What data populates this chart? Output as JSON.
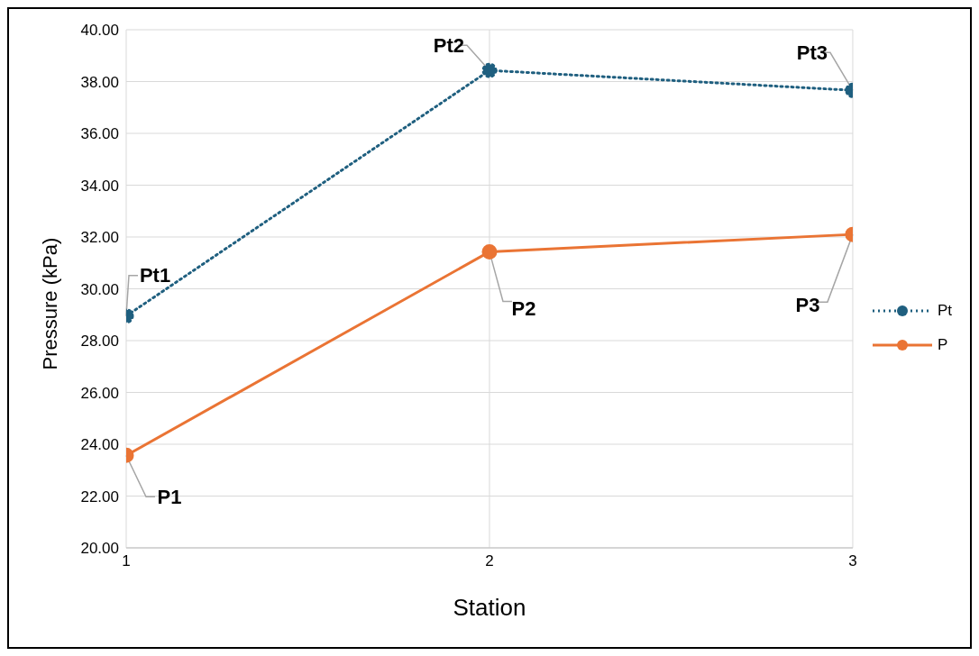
{
  "chart_data": {
    "type": "line",
    "xlabel": "Station",
    "ylabel": "Pressure (kPa)",
    "x": [
      1,
      2,
      3
    ],
    "series": [
      {
        "name": "Pt",
        "color": "#1f5f7f",
        "values": [
          28.95,
          38.43,
          37.66
        ],
        "line_style": "dotted"
      },
      {
        "name": "P",
        "color": "#ea7434",
        "values": [
          23.57,
          31.43,
          32.1
        ],
        "line_style": "solid"
      }
    ],
    "xlim": [
      1,
      3
    ],
    "xticks": [
      1,
      2,
      3
    ],
    "ylim": [
      20,
      40
    ],
    "yticks": [
      {
        "value": 20,
        "label": "20.00"
      },
      {
        "value": 22,
        "label": "22.00"
      },
      {
        "value": 24,
        "label": "24.00"
      },
      {
        "value": 26,
        "label": "26.00"
      },
      {
        "value": 28,
        "label": "28.00"
      },
      {
        "value": 30,
        "label": "30.00"
      },
      {
        "value": 32,
        "label": "32.00"
      },
      {
        "value": 34,
        "label": "34.00"
      },
      {
        "value": 36,
        "label": "36.00"
      },
      {
        "value": 38,
        "label": "38.00"
      },
      {
        "value": 40,
        "label": "40.00"
      }
    ],
    "annotations": [
      {
        "text": "Pt1",
        "x": 1,
        "y": 28.95
      },
      {
        "text": "Pt2",
        "x": 2,
        "y": 38.43
      },
      {
        "text": "Pt3",
        "x": 3,
        "y": 37.66
      },
      {
        "text": "P1",
        "x": 1,
        "y": 23.57
      },
      {
        "text": "P2",
        "x": 2,
        "y": 31.43
      },
      {
        "text": "P3",
        "x": 3,
        "y": 32.1
      }
    ],
    "grid": true,
    "legend": "right",
    "marker": "circle"
  }
}
